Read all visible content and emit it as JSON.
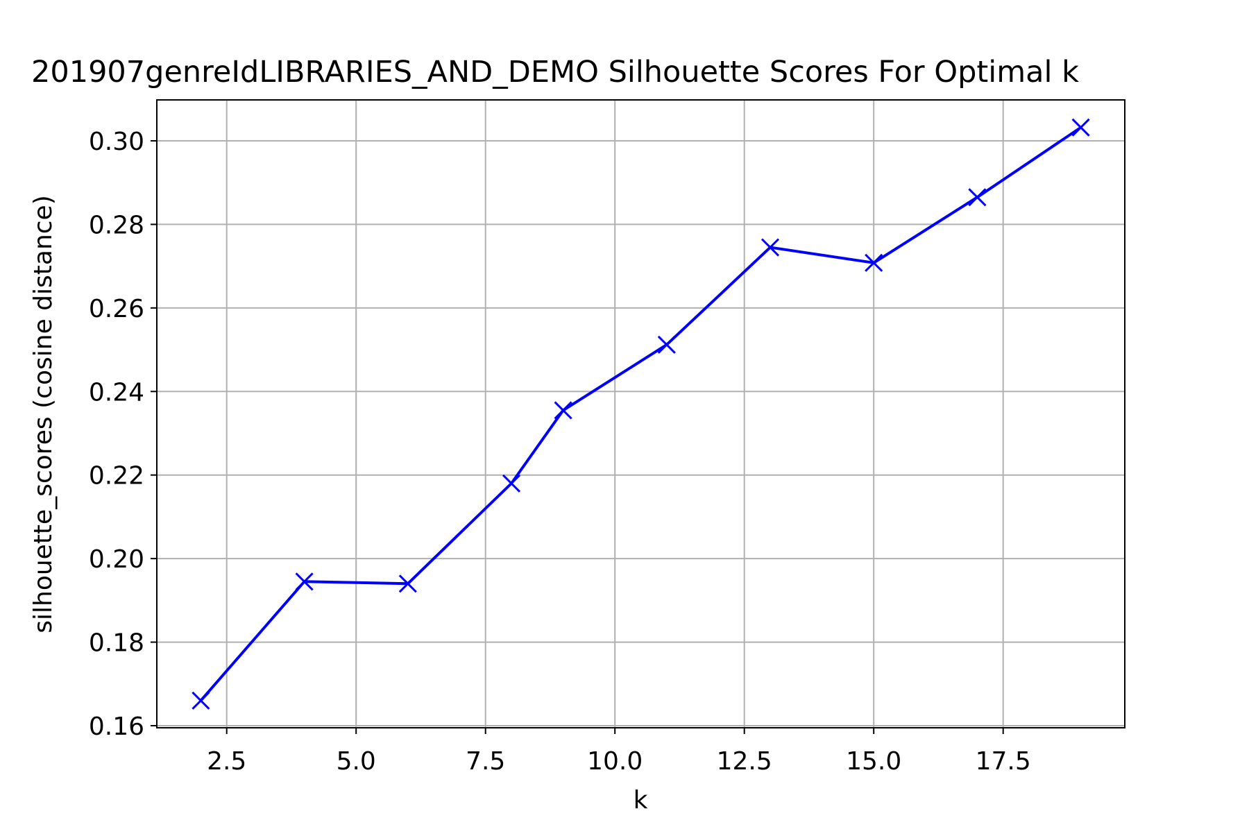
{
  "chart_data": {
    "type": "line",
    "title": "201907genreIdLIBRARIES_AND_DEMO Silhouette Scores For Optimal k",
    "xlabel": "k",
    "ylabel": "silhouette_scores (cosine distance)",
    "xlim": [
      1.15,
      19.85
    ],
    "ylim": [
      0.1595,
      0.3098
    ],
    "xticks": [
      2.5,
      5.0,
      7.5,
      10.0,
      12.5,
      15.0,
      17.5
    ],
    "xtick_labels": [
      "2.5",
      "5.0",
      "7.5",
      "10.0",
      "12.5",
      "15.0",
      "17.5"
    ],
    "yticks": [
      0.16,
      0.18,
      0.2,
      0.22,
      0.24,
      0.26,
      0.28,
      0.3
    ],
    "ytick_labels": [
      "0.16",
      "0.18",
      "0.20",
      "0.22",
      "0.24",
      "0.26",
      "0.28",
      "0.30"
    ],
    "grid": true,
    "series": [
      {
        "marker": "x",
        "color": "#0000ff",
        "x": [
          2,
          4,
          6,
          8,
          9,
          11,
          13,
          15,
          17,
          19
        ],
        "y": [
          0.166,
          0.1945,
          0.194,
          0.218,
          0.2355,
          0.2512,
          0.2745,
          0.2708,
          0.2865,
          0.3032
        ]
      }
    ]
  }
}
